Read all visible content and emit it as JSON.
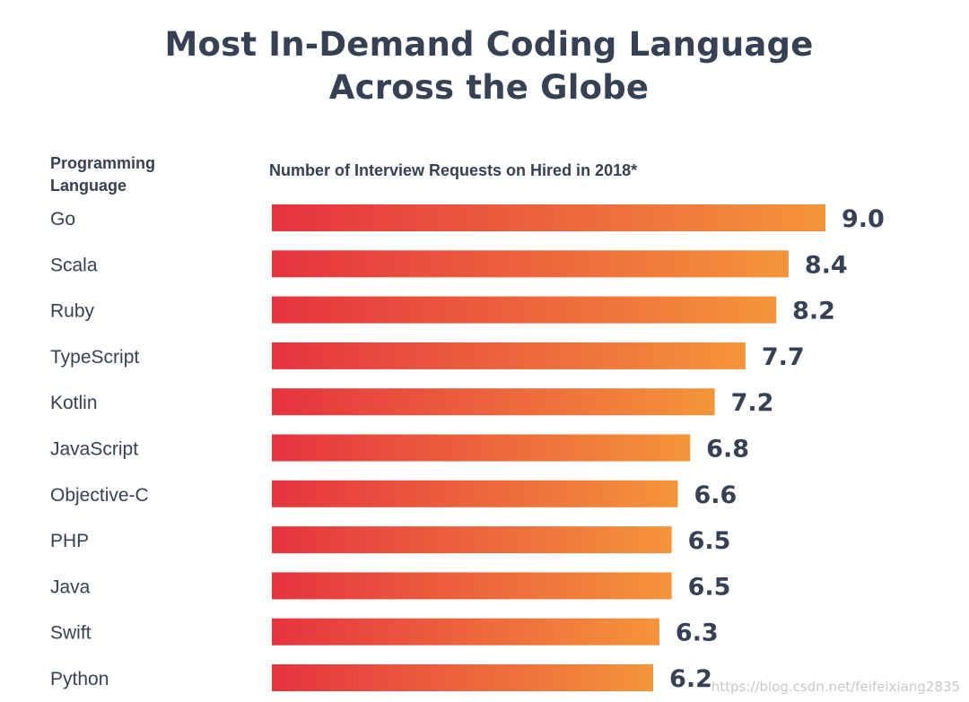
{
  "title_line1": "Most In-Demand Coding Language",
  "title_line2": "Across the Globe",
  "column_header": "Programming Language",
  "axis_header": "Number of Interview Requests on Hired in 2018*",
  "watermark": "https://blog.csdn.net/feifeixiang2835",
  "colors": {
    "bar_start": "#e5333f",
    "bar_end": "#f4953a",
    "text": "#364155"
  },
  "chart_data": {
    "type": "bar",
    "orientation": "horizontal",
    "title": "Most In-Demand Coding Language Across the Globe",
    "xlabel": "Number of Interview Requests on Hired in 2018*",
    "ylabel": "Programming Language",
    "categories": [
      "Go",
      "Scala",
      "Ruby",
      "TypeScript",
      "Kotlin",
      "JavaScript",
      "Objective-C",
      "PHP",
      "Java",
      "Swift",
      "Python"
    ],
    "values": [
      9.0,
      8.4,
      8.2,
      7.7,
      7.2,
      6.8,
      6.6,
      6.5,
      6.5,
      6.3,
      6.2
    ],
    "value_labels": [
      "9.0",
      "8.4",
      "8.2",
      "7.7",
      "7.2",
      "6.8",
      "6.6",
      "6.5",
      "6.5",
      "6.3",
      "6.2"
    ],
    "grid": false,
    "legend": "none"
  }
}
